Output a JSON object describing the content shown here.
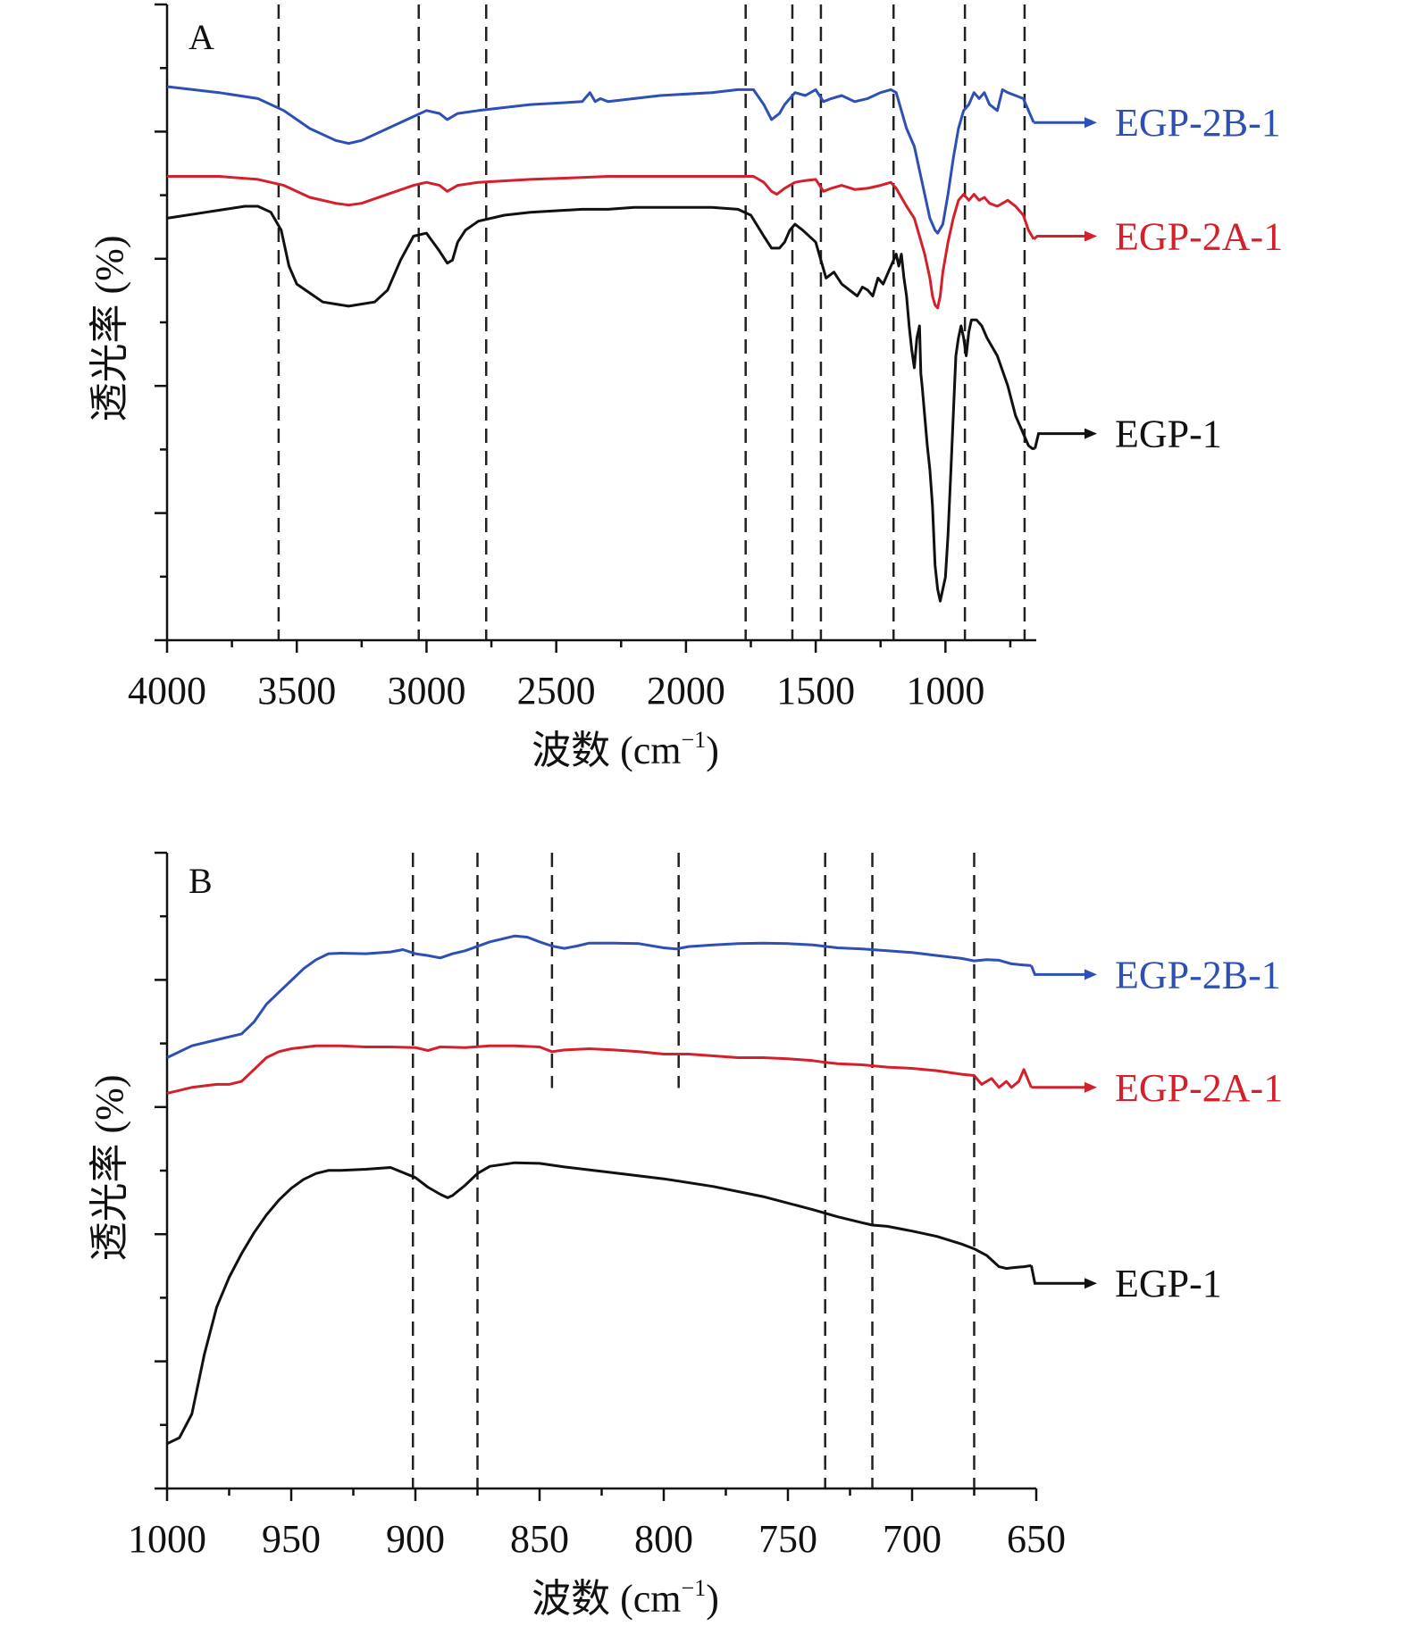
{
  "chart_data": [
    {
      "id": "A",
      "type": "line",
      "panel_label": "A",
      "title": "",
      "xlabel": "波数 (cm",
      "xlabel_sup": "−1",
      "xlabel_close": ")",
      "ylabel": "透光率 (%)",
      "xlim": [
        4000,
        650
      ],
      "ylim": [
        0,
        100
      ],
      "xticks": [
        4000,
        3500,
        3000,
        2500,
        2000,
        1500,
        1000
      ],
      "xtick_labels": [
        "4000",
        "3500",
        "3000",
        "2500",
        "2000",
        "1500",
        "1000"
      ],
      "yticks_major": 5,
      "yticks_minor": 5,
      "grid": false,
      "legend": "right, arrow-labelled at end of each curve",
      "reference_lines_x": [
        3570,
        3030,
        2770,
        1770,
        1590,
        1480,
        1200,
        925,
        695
      ],
      "series": [
        {
          "name": "EGP-2B-1",
          "color": "#2e4fb3",
          "label_y": 84,
          "x": [
            4000,
            3800,
            3650,
            3550,
            3450,
            3350,
            3300,
            3250,
            3150,
            3050,
            3000,
            2950,
            2920,
            2880,
            2800,
            2600,
            2400,
            2370,
            2350,
            2330,
            2300,
            2100,
            1900,
            1800,
            1740,
            1700,
            1670,
            1640,
            1620,
            1580,
            1540,
            1500,
            1470,
            1440,
            1400,
            1350,
            1300,
            1250,
            1210,
            1190,
            1170,
            1150,
            1120,
            1100,
            1080,
            1060,
            1040,
            1030,
            1010,
            990,
            970,
            950,
            930,
            910,
            890,
            870,
            850,
            830,
            800,
            780,
            760,
            730,
            700,
            680,
            660
          ],
          "y": [
            90,
            89,
            88,
            86,
            83,
            81,
            80.5,
            81,
            83,
            85,
            86,
            85.5,
            84.5,
            85.5,
            86,
            87,
            87.5,
            89,
            87.5,
            88,
            87.5,
            88.5,
            89,
            89.5,
            89.5,
            87,
            84.5,
            85.5,
            87,
            89,
            88.5,
            89.5,
            87.5,
            88,
            88.5,
            87.5,
            88,
            89,
            89.5,
            89,
            86,
            83,
            80,
            76,
            72,
            68,
            66,
            65.5,
            67,
            72,
            78,
            83,
            86,
            87,
            89,
            88,
            89,
            87,
            86,
            89.5,
            89,
            88.5,
            88,
            86,
            84
          ]
        },
        {
          "name": "EGP-2A-1",
          "color": "#d4202a",
          "label_y": 65,
          "x": [
            4000,
            3800,
            3650,
            3550,
            3450,
            3350,
            3300,
            3250,
            3150,
            3050,
            3000,
            2950,
            2920,
            2880,
            2800,
            2600,
            2400,
            2300,
            2100,
            1900,
            1800,
            1740,
            1700,
            1670,
            1650,
            1620,
            1580,
            1540,
            1500,
            1470,
            1440,
            1400,
            1350,
            1300,
            1250,
            1210,
            1190,
            1170,
            1150,
            1120,
            1100,
            1080,
            1060,
            1050,
            1040,
            1030,
            1020,
            1010,
            990,
            970,
            950,
            930,
            910,
            890,
            870,
            850,
            830,
            800,
            780,
            760,
            730,
            700,
            680,
            660
          ],
          "y": [
            75,
            75,
            74.5,
            73.5,
            71.5,
            70.5,
            70.2,
            70.5,
            72,
            73.5,
            74,
            73.5,
            72.5,
            73.5,
            74,
            74.5,
            74.8,
            75,
            75,
            75,
            75,
            75,
            74,
            72.5,
            72,
            73,
            74,
            74.3,
            74.5,
            72.5,
            73,
            73.5,
            72.8,
            73,
            73.5,
            74,
            73,
            71.5,
            70,
            68,
            65,
            62,
            58,
            55,
            53.5,
            53,
            55,
            59,
            64,
            68,
            71,
            72,
            71,
            72,
            71,
            71.5,
            70.5,
            70,
            70.5,
            71,
            70,
            68.5,
            66,
            64.5
          ]
        },
        {
          "name": "EGP-1",
          "color": "#111111",
          "label_y": 32,
          "x": [
            4000,
            3850,
            3700,
            3650,
            3600,
            3560,
            3530,
            3500,
            3450,
            3400,
            3300,
            3200,
            3150,
            3100,
            3050,
            3000,
            2950,
            2920,
            2900,
            2880,
            2850,
            2800,
            2700,
            2600,
            2400,
            2300,
            2200,
            2100,
            2000,
            1900,
            1800,
            1750,
            1700,
            1670,
            1640,
            1620,
            1600,
            1580,
            1550,
            1500,
            1480,
            1460,
            1430,
            1400,
            1370,
            1340,
            1320,
            1300,
            1280,
            1260,
            1240,
            1220,
            1200,
            1190,
            1180,
            1170,
            1160,
            1150,
            1140,
            1130,
            1120,
            1110,
            1100,
            1095,
            1090,
            1080,
            1070,
            1060,
            1050,
            1040,
            1030,
            1020,
            1010,
            1000,
            990,
            980,
            970,
            960,
            950,
            940,
            930,
            920,
            910,
            900,
            880,
            860,
            840,
            800,
            760,
            730,
            700,
            680,
            665,
            655
          ],
          "y": [
            68,
            69,
            70,
            70,
            69,
            66,
            60,
            57,
            55.5,
            54,
            53.3,
            54,
            56,
            61,
            65,
            65.5,
            62.5,
            60.5,
            61,
            64,
            66,
            67.5,
            68.5,
            69,
            69.5,
            69.5,
            69.8,
            69.8,
            69.8,
            69.8,
            69.5,
            68.5,
            65,
            63,
            63,
            64,
            66,
            67,
            66,
            64,
            61,
            58,
            59,
            57,
            56,
            55,
            56.5,
            56,
            55,
            58,
            57,
            59,
            61,
            62,
            60,
            62,
            58,
            55,
            50,
            46,
            43,
            48,
            50,
            42,
            40,
            35,
            30,
            26,
            20,
            10,
            6,
            4,
            6,
            8,
            15,
            25,
            35,
            45,
            48,
            50,
            48,
            45,
            49,
            51,
            51,
            50,
            48,
            45,
            40,
            35,
            32,
            30,
            29.5,
            29.5
          ]
        }
      ]
    },
    {
      "id": "B",
      "type": "line",
      "panel_label": "B",
      "title": "",
      "xlabel": "波数 (cm",
      "xlabel_sup": "−1",
      "xlabel_close": ")",
      "ylabel": "透光率 (%)",
      "xlim": [
        1000,
        650
      ],
      "ylim": [
        0,
        100
      ],
      "xticks": [
        1000,
        950,
        900,
        850,
        800,
        750,
        700,
        650
      ],
      "xtick_labels": [
        "1000",
        "950",
        "900",
        "850",
        "800",
        "750",
        "700",
        "650"
      ],
      "yticks_major": 5,
      "yticks_minor": 5,
      "grid": false,
      "legend": "right, arrow-labelled at end of each curve",
      "reference_lines_x": [
        901,
        875,
        845,
        794,
        735,
        716,
        675
      ],
      "reference_lines_short": [
        845,
        794
      ],
      "series": [
        {
          "name": "EGP-2B-1",
          "color": "#2e4fb3",
          "label_y": 84,
          "x": [
            1000,
            990,
            980,
            975,
            970,
            965,
            960,
            955,
            950,
            945,
            940,
            935,
            930,
            920,
            910,
            905,
            900,
            895,
            890,
            885,
            880,
            870,
            860,
            855,
            850,
            845,
            840,
            835,
            830,
            820,
            810,
            800,
            795,
            790,
            780,
            770,
            760,
            750,
            740,
            730,
            720,
            710,
            700,
            690,
            680,
            675,
            670,
            665,
            660,
            655,
            652
          ],
          "y": [
            70,
            72,
            73,
            73.5,
            74,
            76,
            79,
            81,
            83,
            85,
            86.5,
            87.5,
            87.6,
            87.5,
            87.8,
            88.2,
            87.5,
            87.2,
            86.8,
            87.5,
            88,
            89.5,
            90.5,
            90.3,
            89.5,
            88.8,
            88.4,
            88.8,
            89.3,
            89.3,
            89.2,
            88.5,
            88.3,
            88.7,
            89,
            89.2,
            89.3,
            89.2,
            89,
            88.5,
            88.3,
            88,
            87.7,
            87.2,
            86.7,
            86.3,
            86.5,
            86.4,
            85.8,
            85.6,
            85.5
          ]
        },
        {
          "name": "EGP-2A-1",
          "color": "#d4202a",
          "label_y": 65,
          "x": [
            1000,
            990,
            980,
            975,
            970,
            965,
            960,
            955,
            950,
            940,
            930,
            920,
            910,
            900,
            895,
            890,
            880,
            870,
            860,
            850,
            845,
            840,
            830,
            820,
            810,
            800,
            790,
            780,
            770,
            760,
            750,
            740,
            735,
            730,
            720,
            710,
            700,
            690,
            680,
            675,
            672,
            668,
            665,
            662,
            660,
            657,
            655,
            652
          ],
          "y": [
            64,
            65,
            65.5,
            65.5,
            66,
            68,
            70,
            71,
            71.5,
            72,
            72,
            71.8,
            71.8,
            71.7,
            71.2,
            71.8,
            71.7,
            72,
            72,
            71.8,
            71,
            71.3,
            71.5,
            71.3,
            71,
            70.6,
            70.6,
            70.3,
            70,
            70,
            69.8,
            69.5,
            69.2,
            69,
            68.8,
            68.4,
            68.2,
            67.8,
            67.2,
            67,
            65.5,
            66.5,
            65,
            66,
            65,
            66,
            68,
            65
          ]
        },
        {
          "name": "EGP-1",
          "color": "#111111",
          "label_y": 32,
          "x": [
            1000,
            995,
            990,
            985,
            980,
            975,
            970,
            965,
            960,
            955,
            950,
            945,
            940,
            935,
            930,
            920,
            910,
            900,
            895,
            890,
            887,
            885,
            880,
            875,
            870,
            860,
            850,
            840,
            820,
            800,
            780,
            760,
            740,
            735,
            730,
            720,
            716,
            710,
            700,
            690,
            680,
            675,
            670,
            665,
            662,
            660,
            655,
            652
          ],
          "y": [
            5,
            6,
            10,
            20,
            28,
            33,
            37,
            40.5,
            43.5,
            46,
            48,
            49.5,
            50.5,
            51,
            51,
            51.2,
            51.5,
            49.8,
            48.2,
            47,
            46.4,
            46.8,
            48.5,
            50.5,
            51.7,
            52.3,
            52.2,
            51.6,
            50.6,
            49.6,
            48.3,
            46.6,
            44.4,
            43.8,
            43.2,
            42.2,
            41.8,
            41.6,
            40.8,
            39.9,
            38.6,
            37.8,
            36.7,
            34.8,
            34.5,
            34.6,
            34.8,
            35
          ]
        }
      ]
    }
  ]
}
